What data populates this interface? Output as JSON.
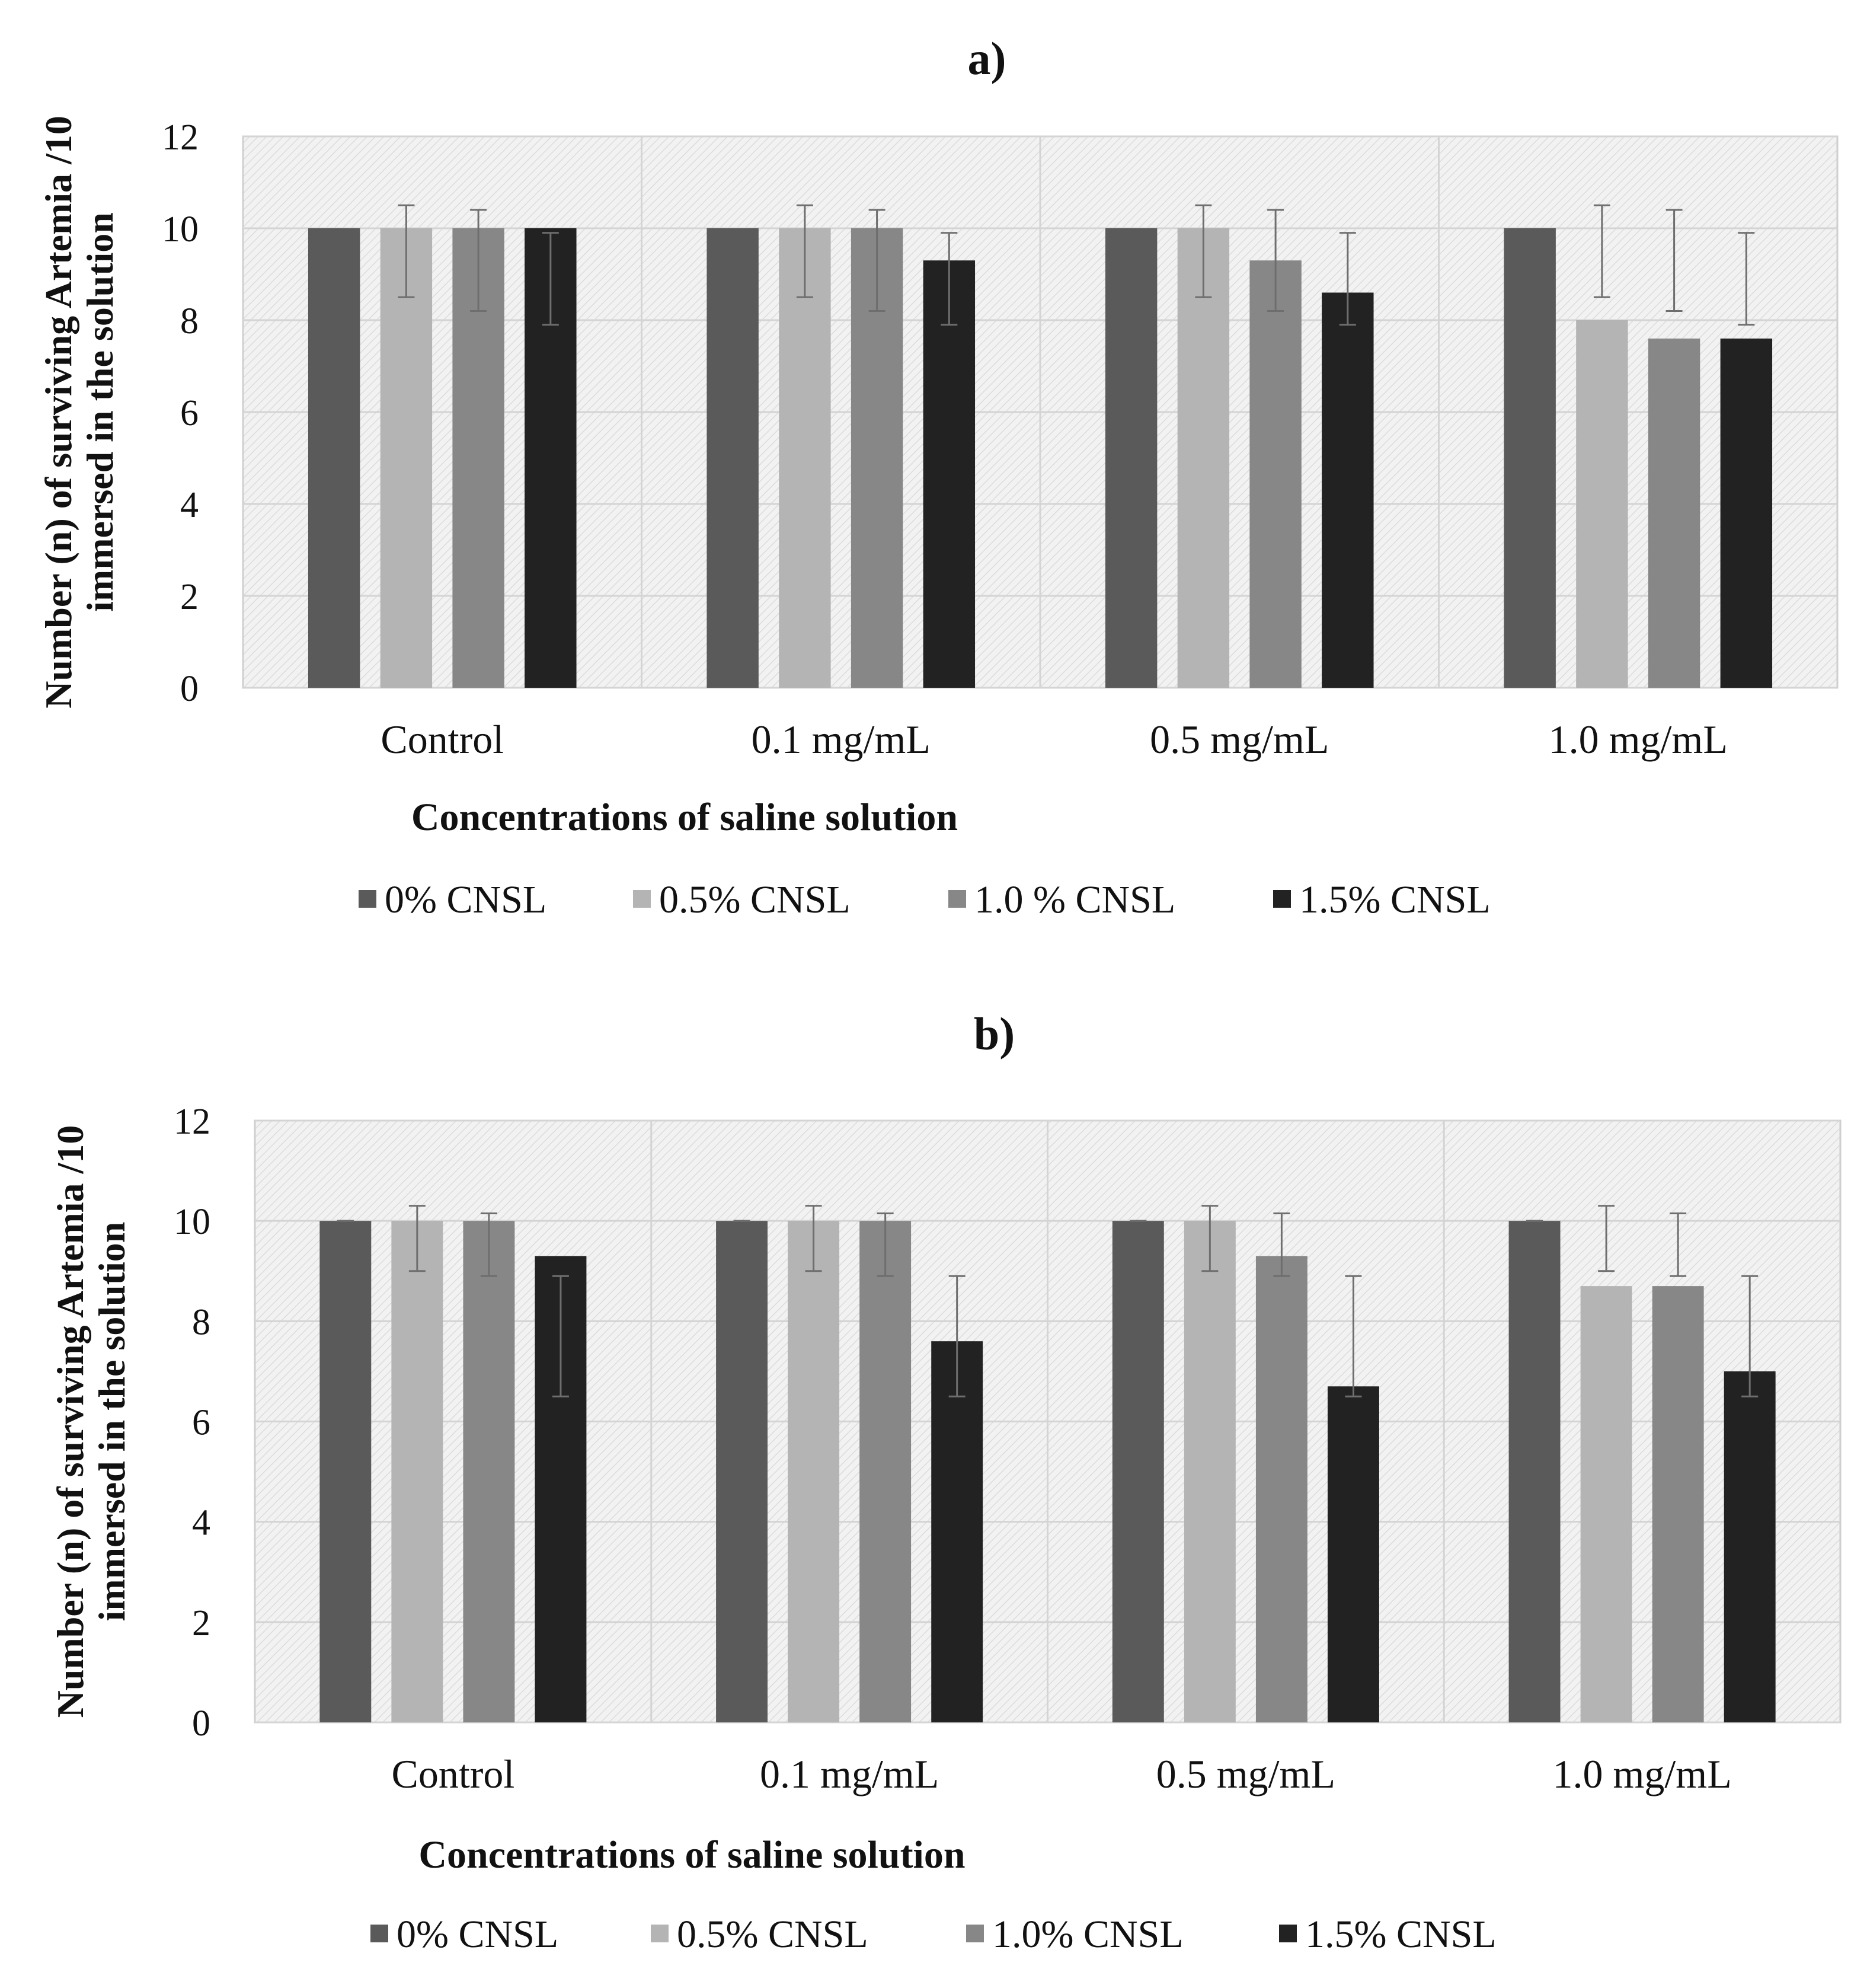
{
  "figure": {
    "charts": [
      {
        "panel_label": "a)",
        "legend_labels": [
          "0% CNSL",
          "0.5% CNSL",
          "1.0 % CNSL",
          "1.5% CNSL"
        ]
      },
      {
        "panel_label": "b)",
        "legend_labels": [
          "0% CNSL",
          "0.5% CNSL",
          "1.0% CNSL",
          "1.5% CNSL"
        ]
      }
    ]
  },
  "chart_data": [
    {
      "type": "bar",
      "title": "a)",
      "xlabel": "Concentrations  of saline solution",
      "ylabel_lines": [
        "Number  (n) of surviving  Artemia  /10",
        "immersed  in  the solution"
      ],
      "categories": [
        "Control",
        "0.1 mg/mL",
        "0.5 mg/mL",
        "1.0 mg/mL"
      ],
      "ylim": [
        0,
        12
      ],
      "yticks": [
        0,
        2,
        4,
        6,
        8,
        10,
        12
      ],
      "grid": true,
      "legend_position": "bottom",
      "series": [
        {
          "name": "0% CNSL",
          "color": "#5a5a5a",
          "values": [
            10,
            10,
            10,
            10
          ],
          "err_low": [
            null,
            null,
            null,
            null
          ],
          "err_high": [
            null,
            null,
            null,
            null
          ]
        },
        {
          "name": "0.5% CNSL",
          "color": "#b4b4b4",
          "values": [
            10,
            10,
            10,
            8
          ],
          "err_low": [
            8.5,
            8.5,
            8.5,
            8.5
          ],
          "err_high": [
            10.5,
            10.5,
            10.5,
            10.5
          ]
        },
        {
          "name": "1.0 % CNSL",
          "color": "#878787",
          "values": [
            10,
            10,
            9.3,
            7.6
          ],
          "err_low": [
            8.2,
            8.2,
            8.2,
            8.2
          ],
          "err_high": [
            10.4,
            10.4,
            10.4,
            10.4
          ]
        },
        {
          "name": "1.5% CNSL",
          "color": "#222222",
          "values": [
            10,
            9.3,
            8.6,
            7.6
          ],
          "err_low": [
            7.9,
            7.9,
            7.9,
            7.9
          ],
          "err_high": [
            9.9,
            9.9,
            9.9,
            9.9
          ]
        }
      ]
    },
    {
      "type": "bar",
      "title": "b)",
      "xlabel": "Concentrations  of saline solution",
      "ylabel_lines": [
        "Number  (n) of surviving  Artemia  /10",
        "immersed  in  the solution"
      ],
      "categories": [
        "Control",
        "0.1 mg/mL",
        "0.5 mg/mL",
        "1.0 mg/mL"
      ],
      "ylim": [
        0,
        12
      ],
      "yticks": [
        0,
        2,
        4,
        6,
        8,
        10,
        12
      ],
      "grid": true,
      "legend_position": "bottom",
      "series": [
        {
          "name": "0% CNSL",
          "color": "#5a5a5a",
          "values": [
            10,
            10,
            10,
            10
          ],
          "err_low": [
            10,
            10,
            10,
            10
          ],
          "err_high": [
            10,
            10,
            10,
            10
          ]
        },
        {
          "name": "0.5% CNSL",
          "color": "#b4b4b4",
          "values": [
            10,
            10,
            10,
            8.7
          ],
          "err_low": [
            9.0,
            9.0,
            9.0,
            9.0
          ],
          "err_high": [
            10.3,
            10.3,
            10.3,
            10.3
          ]
        },
        {
          "name": "1.0% CNSL",
          "color": "#878787",
          "values": [
            10,
            10,
            9.3,
            8.7
          ],
          "err_low": [
            8.9,
            8.9,
            8.9,
            8.9
          ],
          "err_high": [
            10.15,
            10.15,
            10.15,
            10.15
          ]
        },
        {
          "name": "1.5% CNSL",
          "color": "#222222",
          "values": [
            9.3,
            7.6,
            6.7,
            7.0
          ],
          "err_low": [
            6.5,
            6.5,
            6.5,
            6.5
          ],
          "err_high": [
            8.9,
            8.9,
            8.9,
            8.9
          ]
        }
      ]
    }
  ]
}
